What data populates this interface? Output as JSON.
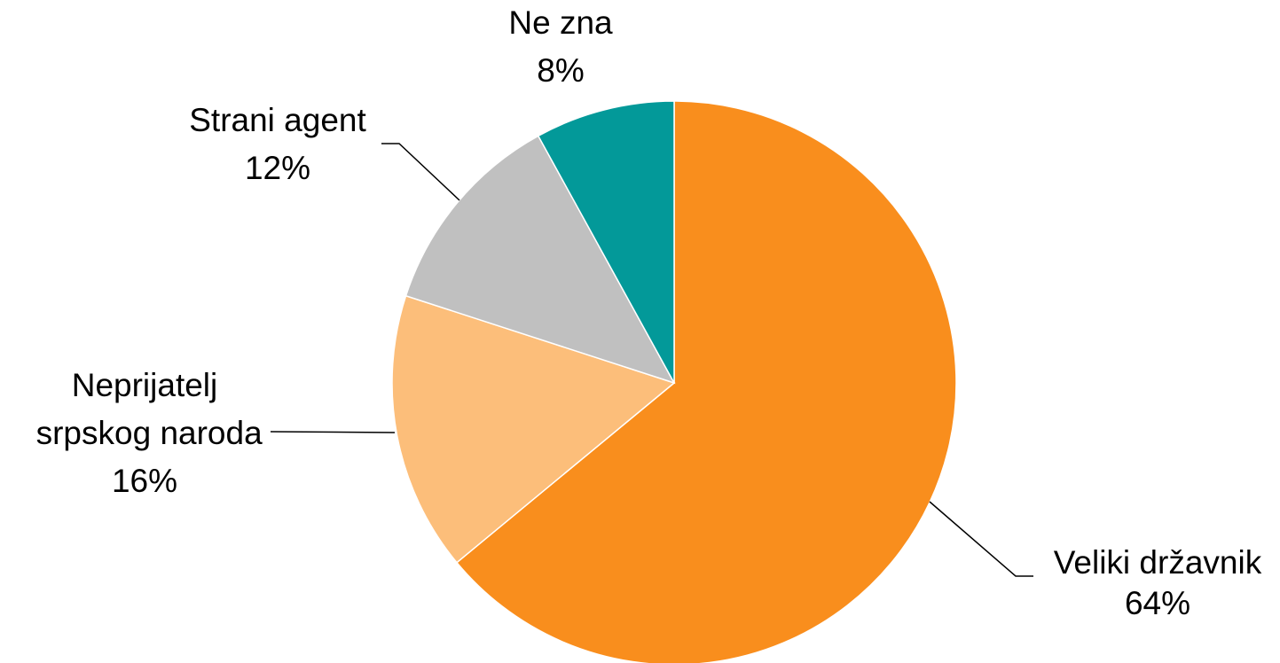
{
  "chart_data": {
    "type": "pie",
    "categories": [
      "Veliki državnik",
      "Neprijatelj srpskog naroda",
      "Strani agent",
      "Ne zna"
    ],
    "values": [
      64,
      16,
      12,
      8
    ],
    "value_labels": [
      "64%",
      "16%",
      "12%",
      "8%"
    ],
    "colors": [
      "#F98E1D",
      "#FCBE7A",
      "#C0C0C0",
      "#039999"
    ]
  }
}
